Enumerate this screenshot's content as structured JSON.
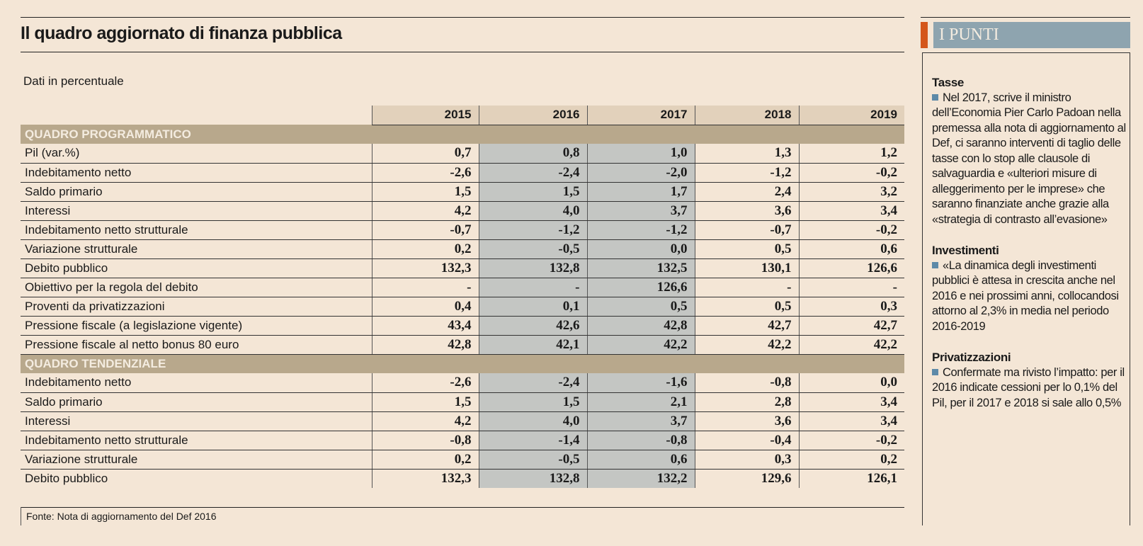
{
  "title": "Il quadro aggiornato di finanza pubblica",
  "subtitle": "Dati in percentuale",
  "source": "Fonte: Nota di aggiornamento del Def 2016",
  "colors": {
    "background": "#f4e6d6",
    "header": "#e2d1bb",
    "section": "#b8a88c",
    "shaded": "#c4c6c3",
    "accent": "#d4561a",
    "panel_header": "#8ea4af",
    "bullet": "#5e8aa8"
  },
  "chart_data": {
    "type": "table",
    "columns": [
      "2015",
      "2016",
      "2017",
      "2018",
      "2019"
    ],
    "sections": [
      {
        "title": "QUADRO PROGRAMMATICO",
        "rows": [
          {
            "label": "Pil (var.%)",
            "values": [
              "0,7",
              "0,8",
              "1,0",
              "1,3",
              "1,2"
            ]
          },
          {
            "label": "Indebitamento netto",
            "values": [
              "-2,6",
              "-2,4",
              "-2,0",
              "-1,2",
              "-0,2"
            ]
          },
          {
            "label": "Saldo primario",
            "values": [
              "1,5",
              "1,5",
              "1,7",
              "2,4",
              "3,2"
            ]
          },
          {
            "label": "Interessi",
            "values": [
              "4,2",
              "4,0",
              "3,7",
              "3,6",
              "3,4"
            ]
          },
          {
            "label": "Indebitamento netto strutturale",
            "values": [
              "-0,7",
              "-1,2",
              "-1,2",
              "-0,7",
              "-0,2"
            ]
          },
          {
            "label": "Variazione strutturale",
            "values": [
              "0,2",
              "-0,5",
              "0,0",
              "0,5",
              "0,6"
            ]
          },
          {
            "label": "Debito pubblico",
            "values": [
              "132,3",
              "132,8",
              "132,5",
              "130,1",
              "126,6"
            ]
          },
          {
            "label": "Obiettivo per la regola del debito",
            "values": [
              "-",
              "-",
              "126,6",
              "-",
              "-"
            ]
          },
          {
            "label": "Proventi da privatizzazioni",
            "values": [
              "0,4",
              "0,1",
              "0,5",
              "0,5",
              "0,3"
            ]
          },
          {
            "label": "Pressione fiscale (a legislazione vigente)",
            "values": [
              "43,4",
              "42,6",
              "42,8",
              "42,7",
              "42,7"
            ]
          },
          {
            "label": "Pressione fiscale al netto bonus 80 euro",
            "values": [
              "42,8",
              "42,1",
              "42,2",
              "42,2",
              "42,2"
            ]
          }
        ]
      },
      {
        "title": "QUADRO TENDENZIALE",
        "rows": [
          {
            "label": "Indebitamento netto",
            "values": [
              "-2,6",
              "-2,4",
              "-1,6",
              "-0,8",
              "0,0"
            ]
          },
          {
            "label": "Saldo primario",
            "values": [
              "1,5",
              "1,5",
              "2,1",
              "2,8",
              "3,4"
            ]
          },
          {
            "label": "Interessi",
            "values": [
              "4,2",
              "4,0",
              "3,7",
              "3,6",
              "3,4"
            ]
          },
          {
            "label": "Indebitamento netto strutturale",
            "values": [
              "-0,8",
              "-1,4",
              "-0,8",
              "-0,4",
              "-0,2"
            ]
          },
          {
            "label": "Variazione strutturale",
            "values": [
              "0,2",
              "-0,5",
              "0,6",
              "0,3",
              "0,2"
            ]
          },
          {
            "label": "Debito pubblico",
            "values": [
              "132,3",
              "132,8",
              "132,2",
              "129,6",
              "126,1"
            ]
          }
        ]
      }
    ],
    "shaded_columns": [
      "2016",
      "2017"
    ]
  },
  "panel": {
    "title": "I PUNTI",
    "items": [
      {
        "heading": "Tasse",
        "text": "Nel 2017, scrive il ministro dell’Economia Pier Carlo Padoan nella premessa alla nota di aggiornamento al Def, ci saranno interventi di taglio delle tasse con lo stop alle clausole di salvaguardia e «ulteriori misure di alleggerimento per le imprese» che saranno finanziate anche grazie alla «strategia di contrasto all’evasione»"
      },
      {
        "heading": "Investimenti",
        "text": "«La dinamica degli investimenti pubblici è attesa in crescita anche nel 2016 e nei prossimi anni, collocandosi attorno al 2,3% in media nel periodo 2016-2019"
      },
      {
        "heading": "Privatizzazioni",
        "text": "Confermate ma rivisto l’impatto: per il 2016 indicate cessioni per lo 0,1% del Pil, per il 2017 e 2018 si sale allo 0,5%"
      }
    ]
  }
}
